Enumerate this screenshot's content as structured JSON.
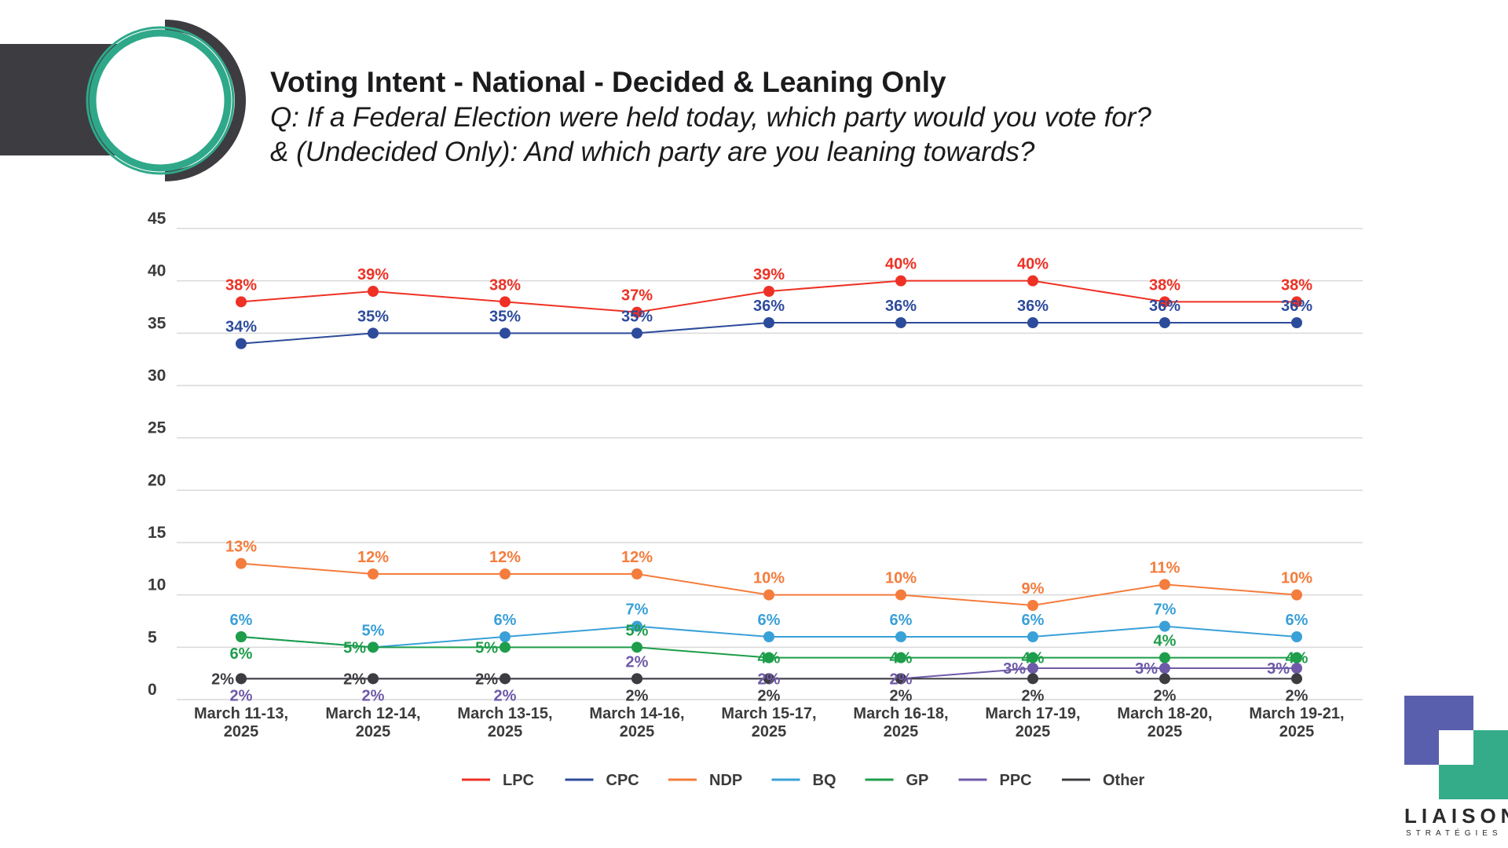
{
  "header": {
    "title": "Voting Intent - National - Decided & Leaning Only",
    "subtitle_line1": "Q: If a Federal Election were held today, which party would you vote for?",
    "subtitle_line2": "& (Undecided Only): And which party are you leaning towards?"
  },
  "logo": {
    "name": "LIAISON",
    "sub": "STRATÉGIES"
  },
  "chart_data": {
    "type": "line",
    "categories": [
      [
        "March 11-13,",
        "2025"
      ],
      [
        "March 12-14,",
        "2025"
      ],
      [
        "March 13-15,",
        "2025"
      ],
      [
        "March 14-16,",
        "2025"
      ],
      [
        "March 15-17,",
        "2025"
      ],
      [
        "March 16-18,",
        "2025"
      ],
      [
        "March 17-19,",
        "2025"
      ],
      [
        "March 18-20,",
        "2025"
      ],
      [
        "March 19-21,",
        "2025"
      ]
    ],
    "ylim": [
      0,
      45
    ],
    "yticks": [
      0,
      5,
      10,
      15,
      20,
      25,
      30,
      35,
      40,
      45
    ],
    "grid": true,
    "legend_position": "bottom",
    "series": [
      {
        "name": "LPC",
        "color": "#ee3124",
        "values": [
          38,
          39,
          38,
          37,
          39,
          40,
          40,
          38,
          38
        ],
        "label_pos": "above"
      },
      {
        "name": "CPC",
        "color": "#2d4b9b",
        "values": [
          34,
          35,
          35,
          35,
          36,
          36,
          36,
          36,
          36
        ],
        "label_pos": "above"
      },
      {
        "name": "NDP",
        "color": "#f47c3c",
        "values": [
          13,
          12,
          12,
          12,
          10,
          10,
          9,
          11,
          10
        ],
        "label_pos": "above"
      },
      {
        "name": "BQ",
        "color": "#3aa0d8",
        "values": [
          6,
          5,
          6,
          7,
          6,
          6,
          6,
          7,
          6
        ],
        "label_pos": "above"
      },
      {
        "name": "GP",
        "color": "#1e9d4a",
        "values": [
          6,
          5,
          5,
          5,
          4,
          4,
          4,
          4,
          4
        ],
        "label_pos": [
          "below",
          "left",
          "left",
          "above",
          "on",
          "on",
          "on",
          "above",
          "on"
        ]
      },
      {
        "name": "PPC",
        "color": "#6e5aa8",
        "values": [
          2,
          2,
          2,
          2,
          2,
          2,
          3,
          3,
          3
        ],
        "label_pos": [
          "below",
          "below",
          "below",
          "above",
          "on",
          "on",
          "left",
          "left",
          "left"
        ]
      },
      {
        "name": "Other",
        "color": "#3d3c41",
        "values": [
          2,
          2,
          2,
          2,
          2,
          2,
          2,
          2,
          2
        ],
        "label_pos": [
          "left",
          "left",
          "left",
          "below",
          "below",
          "below",
          "below",
          "below",
          "below"
        ]
      }
    ]
  }
}
